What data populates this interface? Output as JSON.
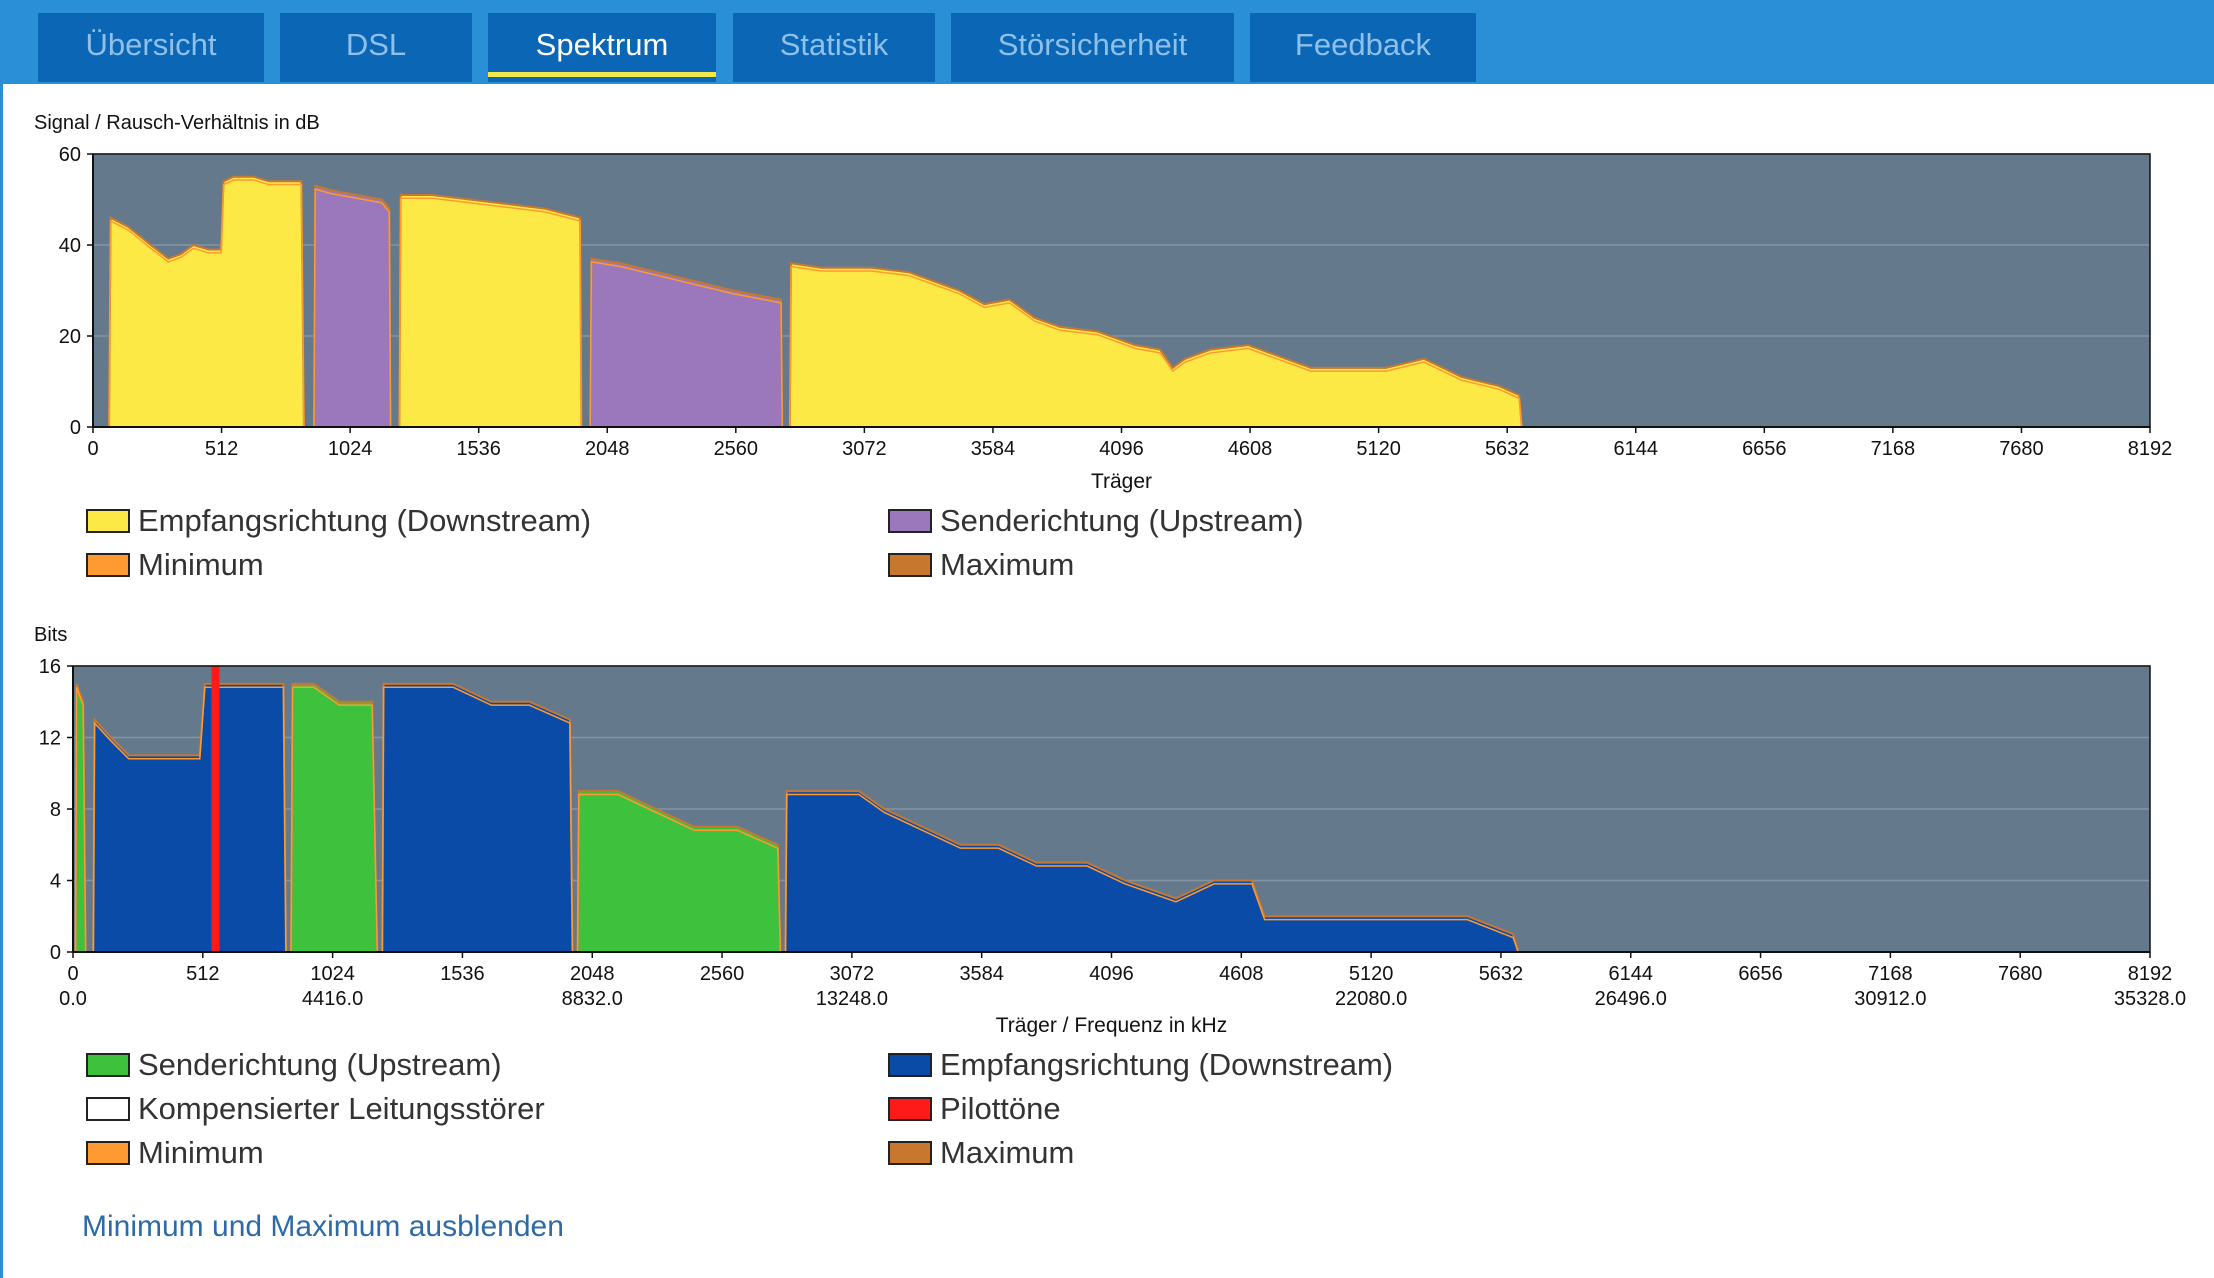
{
  "tabs": [
    {
      "label": "Übersicht",
      "active": false
    },
    {
      "label": "DSL",
      "active": false
    },
    {
      "label": "Spektrum",
      "active": true
    },
    {
      "label": "Statistik",
      "active": false
    },
    {
      "label": "Störsicherheit",
      "active": false
    },
    {
      "label": "Feedback",
      "active": false
    }
  ],
  "colors": {
    "plot_bg": "#647a8c",
    "downstream_snr": "#fde945",
    "upstream_snr": "#9b78bb",
    "downstream_bits": "#0a4ba8",
    "upstream_bits": "#3ec23e",
    "pilot": "#ff1a1a",
    "minimum": "#ff9a33",
    "maximum": "#c8772f",
    "tab_bar": "#2b8fd8",
    "tab_bg": "#0b66b5",
    "active_underline": "#f2e84a"
  },
  "legend1": [
    {
      "label": "Empfangsrichtung (Downstream)",
      "color": "#fde945"
    },
    {
      "label": "Senderichtung (Upstream)",
      "color": "#9b78bb"
    },
    {
      "label": "Minimum",
      "color": "#ff9a33"
    },
    {
      "label": "Maximum",
      "color": "#c8772f"
    }
  ],
  "legend2": [
    {
      "label": "Senderichtung (Upstream)",
      "color": "#3ec23e"
    },
    {
      "label": "Empfangsrichtung (Downstream)",
      "color": "#0a4ba8"
    },
    {
      "label": "Kompensierter Leitungsstörer",
      "color": "#ffffff"
    },
    {
      "label": "Pilottöne",
      "color": "#ff1a1a"
    },
    {
      "label": "Minimum",
      "color": "#ff9a33"
    },
    {
      "label": "Maximum",
      "color": "#c8772f"
    }
  ],
  "footer_link": "Minimum und Maximum ausblenden",
  "chart_data": [
    {
      "type": "area",
      "title": "Signal / Rausch-Verhältnis in dB",
      "xlabel": "Träger",
      "ylabel": "",
      "xlim": [
        0,
        8192
      ],
      "ylim": [
        0,
        60
      ],
      "xticks": [
        0,
        512,
        1024,
        1536,
        2048,
        2560,
        3072,
        3584,
        4096,
        4608,
        5120,
        5632,
        6144,
        6656,
        7168,
        7680,
        8192
      ],
      "yticks": [
        0,
        20,
        40,
        60
      ],
      "grid": true,
      "series": [
        {
          "name": "Empfangsrichtung (Downstream)",
          "color": "#fde945",
          "points": [
            [
              64,
              0
            ],
            [
              70,
              46
            ],
            [
              140,
              44
            ],
            [
              230,
              40
            ],
            [
              300,
              37
            ],
            [
              350,
              38
            ],
            [
              400,
              40
            ],
            [
              460,
              39
            ],
            [
              510,
              39
            ],
            [
              520,
              54
            ],
            [
              560,
              55
            ],
            [
              640,
              55
            ],
            [
              700,
              54
            ],
            [
              830,
              54
            ],
            [
              840,
              0
            ]
          ]
        },
        {
          "name": "Senderichtung (Upstream)",
          "color": "#9b78bb",
          "points": [
            [
              880,
              0
            ],
            [
              885,
              53
            ],
            [
              950,
              52
            ],
            [
              1050,
              51
            ],
            [
              1150,
              50
            ],
            [
              1180,
              48
            ],
            [
              1185,
              0
            ]
          ]
        },
        {
          "name": "Empfangsrichtung (Downstream)",
          "color": "#fde945",
          "points": [
            [
              1220,
              0
            ],
            [
              1225,
              51
            ],
            [
              1350,
              51
            ],
            [
              1500,
              50
            ],
            [
              1650,
              49
            ],
            [
              1800,
              48
            ],
            [
              1940,
              46
            ],
            [
              1945,
              0
            ]
          ]
        },
        {
          "name": "Senderichtung (Upstream)",
          "color": "#9b78bb",
          "points": [
            [
              1980,
              0
            ],
            [
              1985,
              37
            ],
            [
              2100,
              36
            ],
            [
              2250,
              34
            ],
            [
              2400,
              32
            ],
            [
              2550,
              30
            ],
            [
              2740,
              28
            ],
            [
              2745,
              0
            ]
          ]
        },
        {
          "name": "Empfangsrichtung (Downstream)",
          "color": "#fde945",
          "points": [
            [
              2775,
              0
            ],
            [
              2780,
              36
            ],
            [
              2900,
              35
            ],
            [
              3100,
              35
            ],
            [
              3250,
              34
            ],
            [
              3350,
              32
            ],
            [
              3450,
              30
            ],
            [
              3550,
              27
            ],
            [
              3650,
              28
            ],
            [
              3750,
              24
            ],
            [
              3850,
              22
            ],
            [
              4000,
              21
            ],
            [
              4150,
              18
            ],
            [
              4250,
              17
            ],
            [
              4300,
              13
            ],
            [
              4350,
              15
            ],
            [
              4450,
              17
            ],
            [
              4600,
              18
            ],
            [
              4700,
              16
            ],
            [
              4850,
              13
            ],
            [
              5000,
              13
            ],
            [
              5150,
              13
            ],
            [
              5300,
              15
            ],
            [
              5450,
              11
            ],
            [
              5600,
              9
            ],
            [
              5680,
              7
            ],
            [
              5690,
              0
            ]
          ]
        }
      ]
    },
    {
      "type": "area",
      "title": "Bits",
      "xlabel": "Träger / Frequenz in kHz",
      "ylabel": "",
      "xlim": [
        0,
        8192
      ],
      "ylim": [
        0,
        16
      ],
      "xticks": [
        0,
        512,
        1024,
        1536,
        2048,
        2560,
        3072,
        3584,
        4096,
        4608,
        5120,
        5632,
        6144,
        6656,
        7168,
        7680,
        8192
      ],
      "xticks_secondary": [
        "0.0",
        "4416.0",
        "8832.0",
        "13248.0",
        "22080.0",
        "26496.0",
        "30912.0",
        "35328.0"
      ],
      "xticks_secondary_at": [
        0,
        1024,
        2048,
        3072,
        5120,
        6144,
        7168,
        8192
      ],
      "yticks": [
        0,
        4,
        8,
        12,
        16
      ],
      "grid": true,
      "series": [
        {
          "name": "Senderichtung (Upstream)",
          "color": "#3ec23e",
          "points": [
            [
              10,
              0
            ],
            [
              14,
              15
            ],
            [
              40,
              14
            ],
            [
              50,
              0
            ]
          ]
        },
        {
          "name": "Empfangsrichtung (Downstream)",
          "color": "#0a4ba8",
          "points": [
            [
              80,
              0
            ],
            [
              85,
              13
            ],
            [
              150,
              12
            ],
            [
              220,
              11
            ],
            [
              300,
              11
            ],
            [
              400,
              11
            ],
            [
              500,
              11
            ],
            [
              520,
              15
            ],
            [
              600,
              15
            ],
            [
              700,
              15
            ],
            [
              830,
              15
            ],
            [
              840,
              0
            ]
          ]
        },
        {
          "name": "Senderichtung (Upstream)",
          "color": "#3ec23e",
          "points": [
            [
              860,
              0
            ],
            [
              866,
              15
            ],
            [
              950,
              15
            ],
            [
              1050,
              14
            ],
            [
              1180,
              14
            ],
            [
              1200,
              0
            ]
          ]
        },
        {
          "name": "Empfangsrichtung (Downstream)",
          "color": "#0a4ba8",
          "points": [
            [
              1220,
              0
            ],
            [
              1225,
              15
            ],
            [
              1350,
              15
            ],
            [
              1500,
              15
            ],
            [
              1650,
              14
            ],
            [
              1800,
              14
            ],
            [
              1960,
              13
            ],
            [
              1970,
              0
            ]
          ]
        },
        {
          "name": "Senderichtung (Upstream)",
          "color": "#3ec23e",
          "points": [
            [
              1990,
              0
            ],
            [
              1995,
              9
            ],
            [
              2150,
              9
            ],
            [
              2300,
              8
            ],
            [
              2450,
              7
            ],
            [
              2620,
              7
            ],
            [
              2780,
              6
            ],
            [
              2790,
              0
            ]
          ]
        },
        {
          "name": "Empfangsrichtung (Downstream)",
          "color": "#0a4ba8",
          "points": [
            [
              2810,
              0
            ],
            [
              2815,
              9
            ],
            [
              2950,
              9
            ],
            [
              3100,
              9
            ],
            [
              3200,
              8
            ],
            [
              3350,
              7
            ],
            [
              3500,
              6
            ],
            [
              3650,
              6
            ],
            [
              3800,
              5
            ],
            [
              4000,
              5
            ],
            [
              4150,
              4
            ],
            [
              4350,
              3
            ],
            [
              4500,
              4
            ],
            [
              4650,
              4
            ],
            [
              4700,
              2
            ],
            [
              5000,
              2
            ],
            [
              5300,
              2
            ],
            [
              5500,
              2
            ],
            [
              5680,
              1
            ],
            [
              5700,
              0
            ]
          ]
        }
      ],
      "pilot_tones": [
        562
      ]
    }
  ]
}
